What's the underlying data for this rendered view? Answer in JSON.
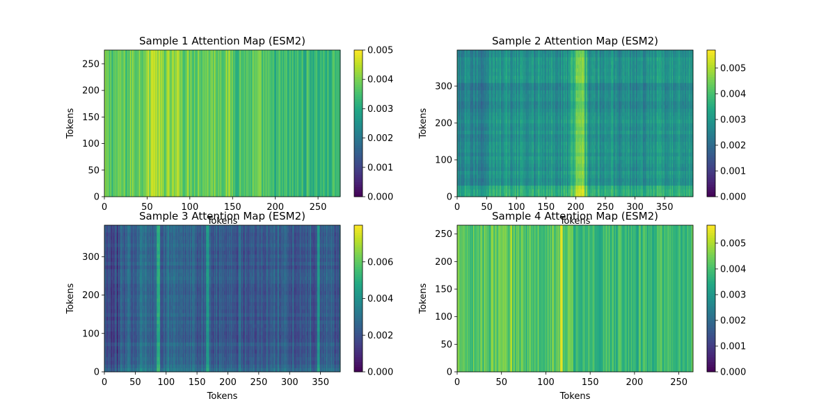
{
  "chart_data": [
    {
      "type": "heatmap",
      "title": "Sample 1 Attention Map (ESM2)",
      "xlabel": "Tokens",
      "ylabel": "Tokens",
      "size": 276,
      "xlim": [
        0,
        276
      ],
      "ylim": [
        0,
        276
      ],
      "xticks": [
        0,
        50,
        100,
        150,
        200,
        250
      ],
      "yticks": [
        0,
        50,
        100,
        150,
        200,
        250
      ],
      "colorbar": {
        "min": 0.0,
        "max": 0.005,
        "ticks": [
          0.0,
          0.001,
          0.002,
          0.003,
          0.004,
          0.005
        ],
        "tick_labels": [
          "0.000",
          "0.001",
          "0.002",
          "0.003",
          "0.004",
          "0.005"
        ]
      },
      "column_profile": [
        {
          "start": 0,
          "end": 30,
          "value": 0.0037
        },
        {
          "start": 30,
          "end": 45,
          "value": 0.0039
        },
        {
          "start": 45,
          "end": 65,
          "value": 0.0042
        },
        {
          "start": 65,
          "end": 85,
          "value": 0.004
        },
        {
          "start": 85,
          "end": 150,
          "value": 0.0039
        },
        {
          "start": 150,
          "end": 190,
          "value": 0.0036
        },
        {
          "start": 190,
          "end": 276,
          "value": 0.0033
        }
      ],
      "row_profile": [],
      "highlights": [
        {
          "start": 55,
          "end": 60,
          "value": 0.0046
        },
        {
          "start": 85,
          "end": 88,
          "value": 0.0045
        }
      ]
    },
    {
      "type": "heatmap",
      "title": "Sample 2 Attention Map (ESM2)",
      "xlabel": "Tokens",
      "ylabel": "Tokens",
      "size": 398,
      "xlim": [
        0,
        398
      ],
      "ylim": [
        0,
        398
      ],
      "xticks": [
        0,
        50,
        100,
        150,
        200,
        250,
        300,
        350
      ],
      "yticks": [
        0,
        100,
        200,
        300
      ],
      "colorbar": {
        "min": 0.0,
        "max": 0.0057,
        "ticks": [
          0.0,
          0.001,
          0.002,
          0.003,
          0.004,
          0.005
        ],
        "tick_labels": [
          "0.000",
          "0.001",
          "0.002",
          "0.003",
          "0.004",
          "0.005"
        ]
      },
      "column_profile": [
        {
          "start": 0,
          "end": 50,
          "value": 0.0025
        },
        {
          "start": 50,
          "end": 190,
          "value": 0.0029
        },
        {
          "start": 190,
          "end": 220,
          "value": 0.0037
        },
        {
          "start": 220,
          "end": 398,
          "value": 0.0029
        }
      ],
      "row_profile": [
        {
          "start": 0,
          "end": 25,
          "value": 0.0034
        },
        {
          "start": 25,
          "end": 240,
          "value": 0.0028
        },
        {
          "start": 240,
          "end": 310,
          "value": 0.0026
        },
        {
          "start": 310,
          "end": 398,
          "value": 0.0028
        }
      ],
      "highlights": [
        {
          "start": 200,
          "end": 215,
          "value": 0.0046
        }
      ]
    },
    {
      "type": "heatmap",
      "title": "Sample 3 Attention Map (ESM2)",
      "xlabel": "Tokens",
      "ylabel": "Tokens",
      "size": 382,
      "xlim": [
        0,
        382
      ],
      "ylim": [
        0,
        382
      ],
      "xticks": [
        0,
        50,
        100,
        150,
        200,
        250,
        300,
        350
      ],
      "yticks": [
        0,
        100,
        200,
        300
      ],
      "colorbar": {
        "min": 0.0,
        "max": 0.008,
        "ticks": [
          0.0,
          0.002,
          0.004,
          0.006
        ],
        "tick_labels": [
          "0.000",
          "0.002",
          "0.004",
          "0.006"
        ]
      },
      "column_profile": [
        {
          "start": 0,
          "end": 25,
          "value": 0.0018
        },
        {
          "start": 25,
          "end": 150,
          "value": 0.0029
        },
        {
          "start": 150,
          "end": 382,
          "value": 0.0025
        }
      ],
      "row_profile": [
        {
          "start": 0,
          "end": 20,
          "value": 0.0032
        },
        {
          "start": 20,
          "end": 382,
          "value": 0.0026
        }
      ],
      "highlights": [
        {
          "start": 85,
          "end": 90,
          "value": 0.0052
        },
        {
          "start": 165,
          "end": 170,
          "value": 0.0045
        },
        {
          "start": 345,
          "end": 349,
          "value": 0.0042
        }
      ]
    },
    {
      "type": "heatmap",
      "title": "Sample 4 Attention Map (ESM2)",
      "xlabel": "Tokens",
      "ylabel": "Tokens",
      "size": 266,
      "xlim": [
        0,
        266
      ],
      "ylim": [
        0,
        266
      ],
      "xticks": [
        0,
        50,
        100,
        150,
        200,
        250
      ],
      "yticks": [
        0,
        50,
        100,
        150,
        200,
        250
      ],
      "colorbar": {
        "min": 0.0,
        "max": 0.0057,
        "ticks": [
          0.0,
          0.001,
          0.002,
          0.003,
          0.004,
          0.005
        ],
        "tick_labels": [
          "0.000",
          "0.001",
          "0.002",
          "0.003",
          "0.004",
          "0.005"
        ]
      },
      "column_profile": [
        {
          "start": 0,
          "end": 130,
          "value": 0.0042
        },
        {
          "start": 130,
          "end": 266,
          "value": 0.0038
        }
      ],
      "row_profile": [],
      "highlights": [
        {
          "start": 116,
          "end": 119,
          "value": 0.0054
        },
        {
          "start": 60,
          "end": 62,
          "value": 0.005
        }
      ]
    }
  ]
}
